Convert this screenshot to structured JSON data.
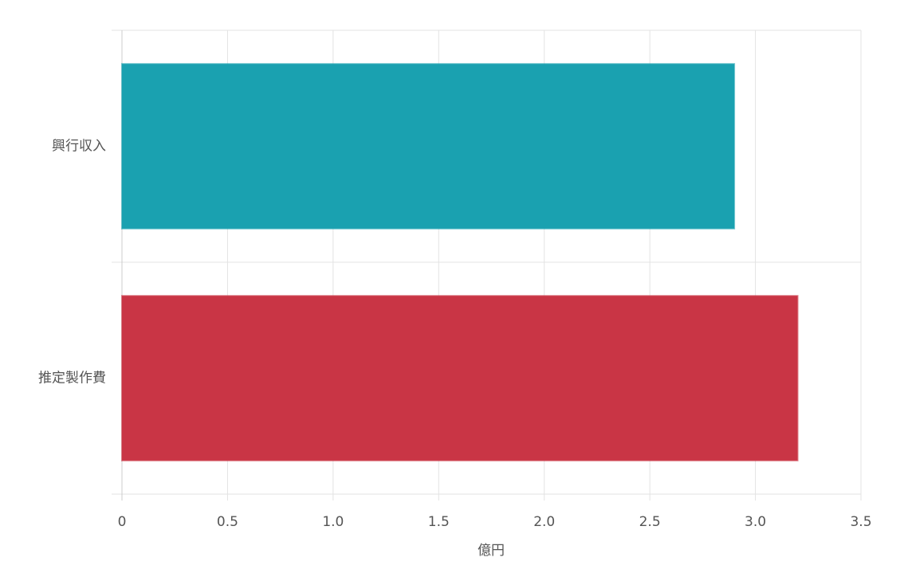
{
  "chart_data": {
    "type": "hbar",
    "categories": [
      "興行収入",
      "推定製作費"
    ],
    "values": [
      2.9,
      3.2
    ],
    "colors": [
      "#1aa1b0",
      "#c93545"
    ],
    "xlim": [
      0,
      3.5
    ],
    "xticks": [
      0,
      0.5,
      {
        "value": 1,
        "label": "1.0"
      },
      1.5,
      {
        "value": 2,
        "label": "2.0"
      },
      2.5,
      {
        "value": 3,
        "label": "3.0"
      },
      3.5
    ],
    "x_label": "億円",
    "grid": true
  }
}
